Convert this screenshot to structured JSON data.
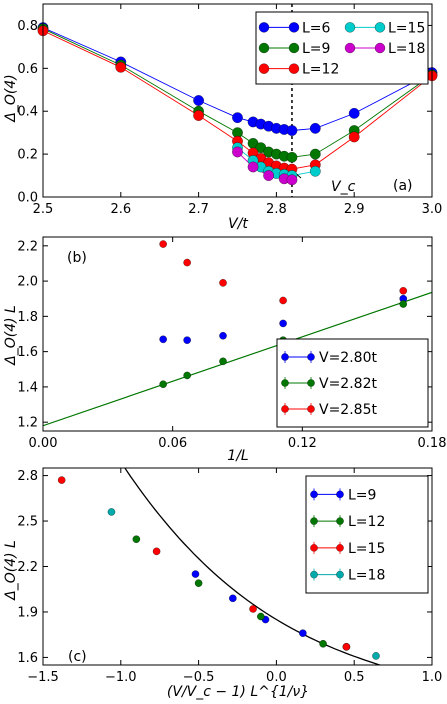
{
  "chart_data": [
    {
      "type": "line",
      "panel_label": "(a)",
      "xlabel": "V/t",
      "ylabel": "Δ_O(4)",
      "xlim": [
        2.5,
        3.0
      ],
      "ylim": [
        0.0,
        0.9
      ],
      "xticks": [
        "2.5",
        "2.6",
        "2.7",
        "2.8",
        "2.9",
        "3.0"
      ],
      "yticks": [
        "0.0",
        "0.2",
        "0.4",
        "0.6",
        "0.8"
      ],
      "annotation": "V_c",
      "vline_x": 2.82,
      "legend": "top-right",
      "series": [
        {
          "name": "L=6",
          "color": "#0000ff",
          "x": [
            2.5,
            2.6,
            2.7,
            2.75,
            2.77,
            2.78,
            2.79,
            2.8,
            2.81,
            2.82,
            2.85,
            2.9,
            3.0
          ],
          "y": [
            0.79,
            0.63,
            0.45,
            0.37,
            0.35,
            0.34,
            0.33,
            0.32,
            0.315,
            0.31,
            0.32,
            0.39,
            0.58
          ]
        },
        {
          "name": "L=9",
          "color": "#007700",
          "x": [
            2.5,
            2.6,
            2.7,
            2.75,
            2.77,
            2.78,
            2.79,
            2.8,
            2.81,
            2.82,
            2.85,
            2.9,
            3.0
          ],
          "y": [
            0.785,
            0.615,
            0.4,
            0.3,
            0.25,
            0.23,
            0.21,
            0.2,
            0.19,
            0.185,
            0.2,
            0.31,
            0.57
          ]
        },
        {
          "name": "L=12",
          "color": "#ff0000",
          "x": [
            2.5,
            2.6,
            2.7,
            2.75,
            2.77,
            2.78,
            2.79,
            2.8,
            2.81,
            2.82,
            2.85,
            2.9,
            3.0
          ],
          "y": [
            0.775,
            0.605,
            0.38,
            0.26,
            0.205,
            0.18,
            0.16,
            0.145,
            0.135,
            0.13,
            0.15,
            0.28,
            0.565
          ]
        },
        {
          "name": "L=15",
          "color": "#00cccc",
          "x": [
            2.75,
            2.77,
            2.78,
            2.79,
            2.8,
            2.81,
            2.82,
            2.85
          ],
          "y": [
            0.23,
            0.17,
            0.14,
            0.12,
            0.11,
            0.105,
            0.1,
            0.12
          ]
        },
        {
          "name": "L=18",
          "color": "#cc00cc",
          "x": [
            2.75,
            2.77,
            2.79,
            2.81,
            2.82
          ],
          "y": [
            0.21,
            0.14,
            0.1,
            0.085,
            0.08
          ]
        }
      ]
    },
    {
      "type": "scatter",
      "panel_label": "(b)",
      "xlabel": "1/L",
      "ylabel": "Δ_O(4) L",
      "xlim": [
        0.0,
        0.18
      ],
      "ylim": [
        1.15,
        2.25
      ],
      "xticks": [
        "0.00",
        "0.06",
        "0.12",
        "0.18"
      ],
      "yticks": [
        "1.2",
        "1.4",
        "1.6",
        "1.8",
        "2.0",
        "2.2"
      ],
      "legend": "bottom-right",
      "fit_line": {
        "slope": 4.2,
        "intercept": 1.18
      },
      "series": [
        {
          "name": "V=2.80t",
          "color": "#0000ff",
          "x": [
            0.0556,
            0.0667,
            0.0833,
            0.1111,
            0.1667
          ],
          "y": [
            1.67,
            1.665,
            1.69,
            1.76,
            1.9
          ]
        },
        {
          "name": "V=2.82t",
          "color": "#007700",
          "x": [
            0.0556,
            0.0667,
            0.0833,
            0.1111,
            0.1667
          ],
          "y": [
            1.415,
            1.465,
            1.545,
            1.665,
            1.87
          ]
        },
        {
          "name": "V=2.85t",
          "color": "#ff0000",
          "x": [
            0.0556,
            0.0667,
            0.0833,
            0.1111,
            0.1667
          ],
          "y": [
            2.21,
            2.105,
            1.99,
            1.89,
            1.945
          ]
        }
      ]
    },
    {
      "type": "scatter",
      "panel_label": "(c)",
      "xlabel": "(V/V_c − 1) L^{1/ν}",
      "ylabel": "Δ_O(4) L",
      "xlim": [
        -1.5,
        1.0
      ],
      "ylim": [
        1.55,
        2.85
      ],
      "xticks": [
        "−1.5",
        "−1.0",
        "−0.5",
        "0.0",
        "0.5",
        "1.0"
      ],
      "yticks": [
        "1.6",
        "1.9",
        "2.2",
        "2.5",
        "2.8"
      ],
      "legend": "top-right",
      "curve_coeffs": [
        1.85,
        -0.62,
        0.32,
        -0.1
      ],
      "series": [
        {
          "name": "L=9",
          "color": "#0000ff",
          "x": [
            -0.52,
            -0.28,
            -0.07,
            0.17,
            0.45
          ],
          "y": [
            2.15,
            1.99,
            1.85,
            1.76,
            1.67
          ]
        },
        {
          "name": "L=12",
          "color": "#007700",
          "x": [
            -0.9,
            -0.5,
            -0.1,
            0.3
          ],
          "y": [
            2.38,
            2.09,
            1.87,
            1.69
          ]
        },
        {
          "name": "L=15",
          "color": "#ff0000",
          "x": [
            -1.38,
            -0.77,
            -0.15,
            0.45
          ],
          "y": [
            2.77,
            2.3,
            1.92,
            1.67
          ]
        },
        {
          "name": "L=18",
          "color": "#00aaaa",
          "x": [
            -1.06,
            0.64
          ],
          "y": [
            2.56,
            1.61
          ]
        }
      ]
    }
  ]
}
